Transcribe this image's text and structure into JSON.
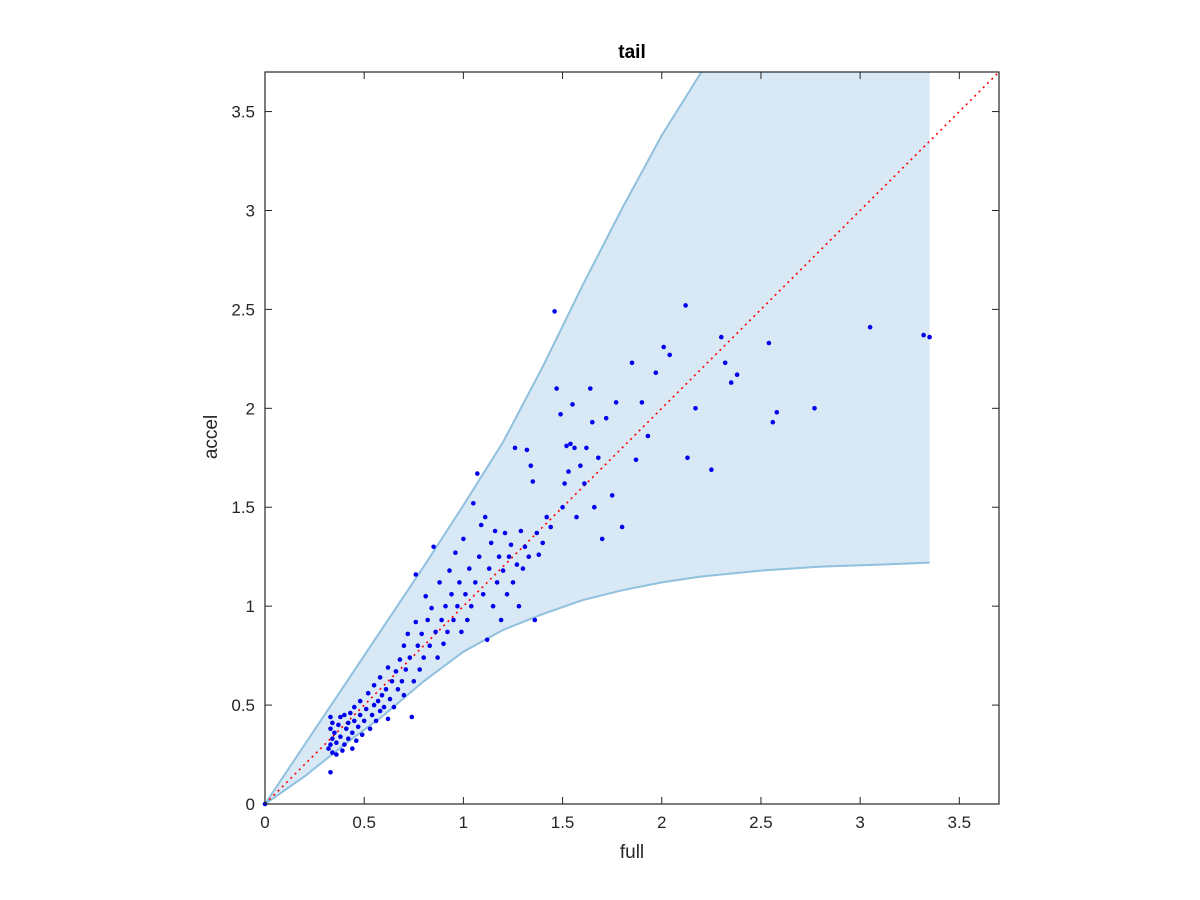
{
  "chart_data": {
    "type": "scatter",
    "title": "tail",
    "xlabel": "full",
    "ylabel": "accel",
    "xlim": [
      0,
      3.7
    ],
    "ylim": [
      0,
      3.7
    ],
    "xticks": [
      0,
      0.5,
      1,
      1.5,
      2,
      2.5,
      3,
      3.5
    ],
    "yticks": [
      0,
      0.5,
      1,
      1.5,
      2,
      2.5,
      3,
      3.5
    ],
    "xtick_labels": [
      "0",
      "0.5",
      "1",
      "1.5",
      "2",
      "2.5",
      "3",
      "3.5"
    ],
    "ytick_labels": [
      "0",
      "0.5",
      "1",
      "1.5",
      "2",
      "2.5",
      "3",
      "3.5"
    ],
    "grid": false,
    "colors": {
      "points": "#0000ee",
      "band_fill": "#d8e8f4",
      "band_edge": "#8fc0de",
      "reference_line": "#ff0000",
      "axes": "#262626"
    },
    "reference_line": {
      "style": "dotted",
      "from": [
        0,
        0
      ],
      "to": [
        3.7,
        3.7
      ]
    },
    "band": {
      "upper": [
        [
          0,
          0
        ],
        [
          0.2,
          0.3
        ],
        [
          0.4,
          0.6
        ],
        [
          0.6,
          0.9
        ],
        [
          0.8,
          1.2
        ],
        [
          1.0,
          1.51
        ],
        [
          1.2,
          1.83
        ],
        [
          1.4,
          2.21
        ],
        [
          1.6,
          2.62
        ],
        [
          1.8,
          3.01
        ],
        [
          2.0,
          3.38
        ],
        [
          2.2,
          3.7
        ],
        [
          3.35,
          3.7
        ]
      ],
      "lower": [
        [
          0,
          0
        ],
        [
          0.2,
          0.14
        ],
        [
          0.4,
          0.3
        ],
        [
          0.6,
          0.45
        ],
        [
          0.8,
          0.62
        ],
        [
          1.0,
          0.77
        ],
        [
          1.2,
          0.88
        ],
        [
          1.4,
          0.96
        ],
        [
          1.6,
          1.03
        ],
        [
          1.8,
          1.08
        ],
        [
          2.0,
          1.12
        ],
        [
          2.2,
          1.15
        ],
        [
          2.5,
          1.18
        ],
        [
          2.8,
          1.2
        ],
        [
          3.1,
          1.21
        ],
        [
          3.35,
          1.22
        ]
      ]
    },
    "points": [
      [
        0.33,
        0.44
      ],
      [
        0.34,
        0.41
      ],
      [
        0.33,
        0.38
      ],
      [
        0.35,
        0.36
      ],
      [
        0.34,
        0.33
      ],
      [
        0.33,
        0.3
      ],
      [
        0.32,
        0.28
      ],
      [
        0.34,
        0.26
      ],
      [
        0.36,
        0.25
      ],
      [
        0.33,
        0.16
      ],
      [
        0.37,
        0.4
      ],
      [
        0.38,
        0.44
      ],
      [
        0.36,
        0.31
      ],
      [
        0.38,
        0.34
      ],
      [
        0.39,
        0.27
      ],
      [
        0.4,
        0.45
      ],
      [
        0.4,
        0.3
      ],
      [
        0.41,
        0.38
      ],
      [
        0.42,
        0.41
      ],
      [
        0.42,
        0.33
      ],
      [
        0.43,
        0.46
      ],
      [
        0.44,
        0.28
      ],
      [
        0.44,
        0.36
      ],
      [
        0.45,
        0.42
      ],
      [
        0.45,
        0.49
      ],
      [
        0.46,
        0.32
      ],
      [
        0.47,
        0.39
      ],
      [
        0.48,
        0.45
      ],
      [
        0.48,
        0.52
      ],
      [
        0.49,
        0.35
      ],
      [
        0.5,
        0.42
      ],
      [
        0.51,
        0.48
      ],
      [
        0.52,
        0.56
      ],
      [
        0.53,
        0.38
      ],
      [
        0.54,
        0.45
      ],
      [
        0.55,
        0.5
      ],
      [
        0.55,
        0.6
      ],
      [
        0.56,
        0.42
      ],
      [
        0.57,
        0.52
      ],
      [
        0.58,
        0.47
      ],
      [
        0.58,
        0.64
      ],
      [
        0.59,
        0.55
      ],
      [
        0.6,
        0.49
      ],
      [
        0.61,
        0.58
      ],
      [
        0.62,
        0.43
      ],
      [
        0.62,
        0.69
      ],
      [
        0.63,
        0.53
      ],
      [
        0.64,
        0.62
      ],
      [
        0.65,
        0.49
      ],
      [
        0.66,
        0.67
      ],
      [
        0.67,
        0.58
      ],
      [
        0.68,
        0.73
      ],
      [
        0.69,
        0.62
      ],
      [
        0.7,
        0.55
      ],
      [
        0.7,
        0.8
      ],
      [
        0.71,
        0.68
      ],
      [
        0.72,
        0.86
      ],
      [
        0.73,
        0.74
      ],
      [
        0.74,
        0.44
      ],
      [
        0.75,
        0.62
      ],
      [
        0.76,
        0.92
      ],
      [
        0.76,
        1.16
      ],
      [
        0.77,
        0.8
      ],
      [
        0.78,
        0.68
      ],
      [
        0.79,
        0.86
      ],
      [
        0.8,
        0.74
      ],
      [
        0.81,
        1.05
      ],
      [
        0.82,
        0.93
      ],
      [
        0.83,
        0.8
      ],
      [
        0.84,
        0.99
      ],
      [
        0.85,
        1.3
      ],
      [
        0.86,
        0.87
      ],
      [
        0.87,
        0.74
      ],
      [
        0.88,
        1.12
      ],
      [
        0.89,
        0.93
      ],
      [
        0.9,
        0.81
      ],
      [
        0.91,
        1.0
      ],
      [
        0.92,
        0.87
      ],
      [
        0.93,
        1.18
      ],
      [
        0.94,
        1.06
      ],
      [
        0.95,
        0.93
      ],
      [
        0.96,
        1.27
      ],
      [
        0.97,
        1.0
      ],
      [
        0.98,
        1.12
      ],
      [
        0.99,
        0.87
      ],
      [
        1.0,
        1.34
      ],
      [
        1.01,
        1.06
      ],
      [
        1.02,
        0.93
      ],
      [
        1.03,
        1.19
      ],
      [
        1.04,
        1.0
      ],
      [
        1.05,
        1.52
      ],
      [
        1.06,
        1.12
      ],
      [
        1.07,
        1.67
      ],
      [
        1.08,
        1.25
      ],
      [
        1.09,
        1.41
      ],
      [
        1.1,
        1.06
      ],
      [
        1.11,
        1.45
      ],
      [
        1.12,
        0.83
      ],
      [
        1.13,
        1.19
      ],
      [
        1.14,
        1.32
      ],
      [
        1.15,
        1.0
      ],
      [
        1.16,
        1.38
      ],
      [
        1.17,
        1.12
      ],
      [
        1.18,
        1.25
      ],
      [
        1.19,
        0.93
      ],
      [
        1.2,
        1.18
      ],
      [
        1.21,
        1.37
      ],
      [
        1.22,
        1.06
      ],
      [
        1.23,
        1.25
      ],
      [
        1.24,
        1.31
      ],
      [
        1.25,
        1.12
      ],
      [
        1.26,
        1.8
      ],
      [
        1.27,
        1.21
      ],
      [
        1.28,
        1.0
      ],
      [
        1.29,
        1.38
      ],
      [
        1.3,
        1.19
      ],
      [
        1.31,
        1.3
      ],
      [
        1.32,
        1.79
      ],
      [
        1.33,
        1.25
      ],
      [
        1.34,
        1.71
      ],
      [
        1.35,
        1.63
      ],
      [
        1.36,
        0.93
      ],
      [
        1.37,
        1.37
      ],
      [
        1.38,
        1.26
      ],
      [
        1.4,
        1.32
      ],
      [
        1.42,
        1.45
      ],
      [
        1.44,
        1.4
      ],
      [
        1.46,
        2.49
      ],
      [
        1.47,
        2.1
      ],
      [
        1.49,
        1.97
      ],
      [
        1.5,
        1.5
      ],
      [
        1.51,
        1.62
      ],
      [
        1.52,
        1.81
      ],
      [
        1.53,
        1.68
      ],
      [
        1.54,
        1.82
      ],
      [
        1.55,
        2.02
      ],
      [
        1.56,
        1.8
      ],
      [
        1.57,
        1.45
      ],
      [
        1.59,
        1.71
      ],
      [
        1.61,
        1.62
      ],
      [
        1.62,
        1.8
      ],
      [
        1.64,
        2.1
      ],
      [
        1.65,
        1.93
      ],
      [
        1.66,
        1.5
      ],
      [
        1.68,
        1.75
      ],
      [
        1.7,
        1.34
      ],
      [
        1.72,
        1.95
      ],
      [
        1.75,
        1.56
      ],
      [
        1.77,
        2.03
      ],
      [
        1.8,
        1.4
      ],
      [
        1.85,
        2.23
      ],
      [
        1.87,
        1.74
      ],
      [
        1.9,
        2.03
      ],
      [
        1.93,
        1.86
      ],
      [
        1.97,
        2.18
      ],
      [
        2.01,
        2.31
      ],
      [
        2.04,
        2.27
      ],
      [
        2.12,
        2.52
      ],
      [
        2.13,
        1.75
      ],
      [
        2.17,
        2.0
      ],
      [
        2.25,
        1.69
      ],
      [
        2.3,
        2.36
      ],
      [
        2.32,
        2.23
      ],
      [
        2.35,
        2.13
      ],
      [
        2.38,
        2.17
      ],
      [
        2.54,
        2.33
      ],
      [
        2.56,
        1.93
      ],
      [
        2.58,
        1.98
      ],
      [
        2.77,
        2.0
      ],
      [
        3.05,
        2.41
      ],
      [
        3.32,
        2.37
      ],
      [
        3.35,
        2.36
      ]
    ]
  }
}
